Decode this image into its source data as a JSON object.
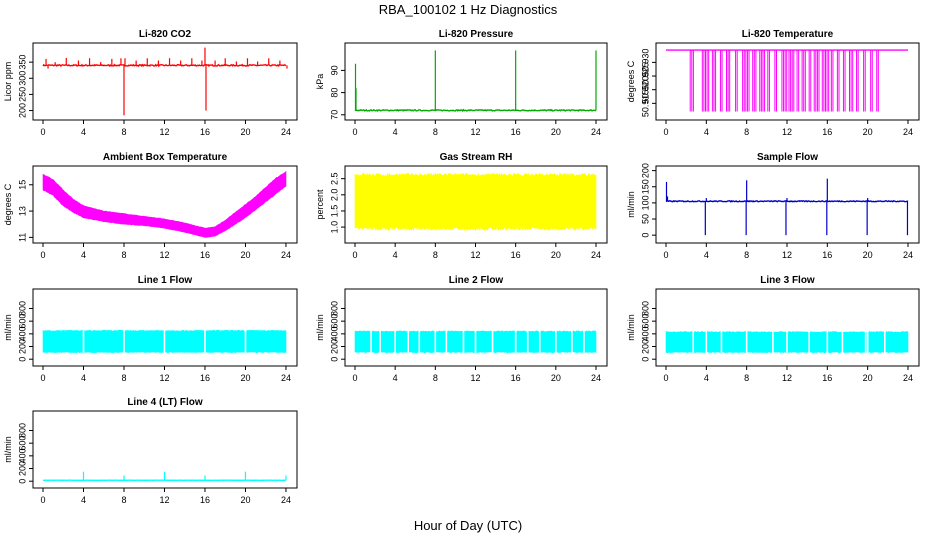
{
  "page": {
    "title": "RBA_100102  1 Hz Diagnostics",
    "x_axis_title": "Hour of Day (UTC)"
  },
  "chart_data": [
    {
      "id": "co2",
      "type": "line",
      "title": "Li-820 CO2",
      "ylabel": "Licor ppm",
      "color": "#ff0000",
      "xlim": [
        0,
        24.3
      ],
      "ylim": [
        180,
        400
      ],
      "yticks": [
        200,
        250,
        300,
        350
      ],
      "xticks": [
        0,
        4,
        8,
        12,
        16,
        20,
        24
      ],
      "baseline": 340,
      "band": 4,
      "spikes": [
        [
          0.3,
          360
        ],
        [
          0.5,
          330
        ],
        [
          1.2,
          350
        ],
        [
          2.3,
          363
        ],
        [
          3.5,
          355
        ],
        [
          4.6,
          362
        ],
        [
          5.7,
          350
        ],
        [
          6.8,
          360
        ],
        [
          7.7,
          362
        ],
        [
          8.0,
          185
        ],
        [
          8.1,
          362
        ],
        [
          9.2,
          355
        ],
        [
          10.3,
          362
        ],
        [
          11.4,
          355
        ],
        [
          12.5,
          362
        ],
        [
          13.6,
          355
        ],
        [
          14.7,
          362
        ],
        [
          15.7,
          355
        ],
        [
          16.0,
          395
        ],
        [
          16.1,
          200
        ],
        [
          17.0,
          355
        ],
        [
          18.0,
          362
        ],
        [
          19.1,
          352
        ],
        [
          20.2,
          362
        ],
        [
          21.2,
          352
        ],
        [
          22.3,
          362
        ],
        [
          23.4,
          355
        ],
        [
          24.1,
          330
        ]
      ]
    },
    {
      "id": "pressure",
      "type": "line",
      "title": "Li-820 Pressure",
      "ylabel": "kPa",
      "color": "#00aa00",
      "xlim": [
        0,
        24.3
      ],
      "ylim": [
        69,
        101
      ],
      "yticks": [
        70,
        80,
        90
      ],
      "xticks": [
        0,
        4,
        8,
        12,
        16,
        20,
        24
      ],
      "baseline": 72,
      "band": 0.5,
      "spikes": [
        [
          0.05,
          93
        ],
        [
          0.1,
          82
        ],
        [
          8.0,
          99
        ],
        [
          16.0,
          99
        ],
        [
          24.0,
          99
        ]
      ]
    },
    {
      "id": "li820-temp",
      "type": "line",
      "title": "Li-820 Temperature",
      "ylabel": "degrees C",
      "color": "#ff00ff",
      "xlim": [
        0,
        24.3
      ],
      "ylim": [
        50.91,
        50.936
      ],
      "yticks": [
        50.915,
        50.92,
        50.925,
        50.93
      ],
      "xticks": [
        0,
        4,
        8,
        12,
        16,
        20,
        24
      ],
      "baseline": 50.9345,
      "drops": [
        [
          2.4,
          2.8
        ],
        [
          3.6,
          4.3
        ],
        [
          4.6,
          5.0
        ],
        [
          5.4,
          5.7
        ],
        [
          6.0,
          6.4
        ],
        [
          6.9,
          7.2
        ],
        [
          7.6,
          8.3
        ],
        [
          8.6,
          9.0
        ],
        [
          9.3,
          9.8
        ],
        [
          10.1,
          10.4
        ],
        [
          10.8,
          11.1
        ],
        [
          11.5,
          12.0
        ],
        [
          12.2,
          12.8
        ],
        [
          13.0,
          13.3
        ],
        [
          13.5,
          13.9
        ],
        [
          14.2,
          14.5
        ],
        [
          14.7,
          15.2
        ],
        [
          15.5,
          16.2
        ],
        [
          16.4,
          16.7
        ],
        [
          17.0,
          17.3
        ],
        [
          17.6,
          17.9
        ],
        [
          18.2,
          18.6
        ],
        [
          18.9,
          19.2
        ],
        [
          19.6,
          19.9
        ],
        [
          20.3,
          20.5
        ],
        [
          20.9,
          21.2
        ]
      ],
      "drop_to": 50.912
    },
    {
      "id": "ambient-temp",
      "type": "area",
      "title": "Ambient Box Temperature",
      "ylabel": "degrees C",
      "color": "#ff00ff",
      "xlim": [
        0,
        24.3
      ],
      "ylim": [
        10.8,
        16.2
      ],
      "yticks": [
        11,
        13,
        15
      ],
      "xticks": [
        0,
        4,
        8,
        12,
        16,
        20,
        24
      ],
      "x": [
        0,
        1,
        2,
        3,
        4,
        6,
        8,
        10,
        12,
        14,
        16,
        17,
        18,
        19,
        20,
        21,
        22,
        23,
        24
      ],
      "upper": [
        15.8,
        15.4,
        14.6,
        13.9,
        13.4,
        13.0,
        12.8,
        12.6,
        12.4,
        12.1,
        11.7,
        11.8,
        12.3,
        12.9,
        13.5,
        14.1,
        14.8,
        15.5,
        16.0
      ],
      "lower": [
        14.6,
        14.2,
        13.4,
        12.9,
        12.5,
        12.2,
        12.0,
        11.9,
        11.7,
        11.4,
        11.0,
        11.1,
        11.5,
        12.0,
        12.5,
        13.1,
        13.7,
        14.3,
        14.9
      ]
    },
    {
      "id": "gas-rh",
      "type": "area",
      "title": "Gas Stream RH",
      "ylabel": "percent",
      "color": "#ffff00",
      "xlim": [
        0,
        24.3
      ],
      "ylim": [
        0.6,
        2.8
      ],
      "yticks": [
        1.0,
        1.5,
        2.0,
        2.5
      ],
      "xticks": [
        0,
        4,
        8,
        12,
        16,
        20,
        24
      ],
      "x": [
        0,
        24
      ],
      "upper": [
        2.62,
        2.62
      ],
      "lower": [
        0.95,
        0.95
      ],
      "noise": 0.1
    },
    {
      "id": "sample-flow",
      "type": "line",
      "title": "Sample Flow",
      "ylabel": "ml/min",
      "color": "#0000cc",
      "xlim": [
        0,
        24.3
      ],
      "ylim": [
        -15,
        205
      ],
      "yticks": [
        0,
        50,
        100,
        150,
        200
      ],
      "xticks": [
        0,
        4,
        8,
        12,
        16,
        20,
        24
      ],
      "baseline": 105,
      "band": 3,
      "spikes": [
        [
          0.05,
          165
        ],
        [
          0.15,
          120
        ],
        [
          3.9,
          0
        ],
        [
          4.0,
          115
        ],
        [
          7.95,
          0
        ],
        [
          8.0,
          170
        ],
        [
          11.9,
          0
        ],
        [
          12.0,
          115
        ],
        [
          15.95,
          0
        ],
        [
          16.0,
          175
        ],
        [
          19.95,
          0
        ],
        [
          20.0,
          115
        ],
        [
          23.95,
          0
        ]
      ]
    },
    {
      "id": "line1-flow",
      "type": "area",
      "title": "Line 1 Flow",
      "ylabel": "ml/min",
      "color": "#00ffff",
      "xlim": [
        0,
        24.3
      ],
      "ylim": [
        -60,
        1060
      ],
      "yticks": [
        0,
        200,
        400,
        600,
        800
      ],
      "xticks": [
        0,
        4,
        8,
        12,
        16,
        20,
        24
      ],
      "x": [
        0,
        24
      ],
      "upper": [
        450,
        450
      ],
      "lower": [
        110,
        110
      ],
      "noise": 15,
      "gaps": [
        4.0,
        8.0,
        12.0,
        16.0,
        20.0
      ]
    },
    {
      "id": "line2-flow",
      "type": "area",
      "title": "Line 2 Flow",
      "ylabel": "ml/min",
      "color": "#00ffff",
      "xlim": [
        0,
        24.3
      ],
      "ylim": [
        -60,
        1060
      ],
      "yticks": [
        0,
        200,
        400,
        600,
        800
      ],
      "xticks": [
        0,
        4,
        8,
        12,
        16,
        20,
        24
      ],
      "x": [
        0,
        24
      ],
      "upper": [
        440,
        440
      ],
      "lower": [
        110,
        110
      ],
      "noise": 15,
      "gaps": [
        1.6,
        2.5,
        4.0,
        5.3,
        6.4,
        8.0,
        9.1,
        10.8,
        12.0,
        13.7,
        16.0,
        17.2,
        18.4,
        20.0,
        21.6,
        22.8
      ]
    },
    {
      "id": "line3-flow",
      "type": "area",
      "title": "Line 3 Flow",
      "ylabel": "ml/min",
      "color": "#00ffff",
      "xlim": [
        0,
        24.3
      ],
      "ylim": [
        -60,
        1060
      ],
      "yticks": [
        0,
        200,
        400,
        600,
        800
      ],
      "xticks": [
        0,
        4,
        8,
        12,
        16,
        20,
        24
      ],
      "x": [
        0,
        24
      ],
      "upper": [
        430,
        430
      ],
      "lower": [
        110,
        110
      ],
      "noise": 15,
      "gaps": [
        2.7,
        4.0,
        5.5,
        8.0,
        10.6,
        12.0,
        14.2,
        16.0,
        17.5,
        19.8,
        20.0,
        21.7
      ]
    },
    {
      "id": "line4-flow",
      "type": "line",
      "title": "Line 4 (LT) Flow",
      "ylabel": "ml/min",
      "color": "#00ffff",
      "xlim": [
        0,
        24.3
      ],
      "ylim": [
        -60,
        1060
      ],
      "yticks": [
        0,
        200,
        400,
        600,
        800
      ],
      "xticks": [
        0,
        4,
        8,
        12,
        16,
        20,
        24
      ],
      "baseline": 15,
      "band": 3,
      "spikes": [
        [
          4.0,
          150
        ],
        [
          8.0,
          90
        ],
        [
          12.0,
          150
        ],
        [
          16.0,
          90
        ],
        [
          20.0,
          150
        ],
        [
          24.0,
          90
        ]
      ]
    }
  ]
}
